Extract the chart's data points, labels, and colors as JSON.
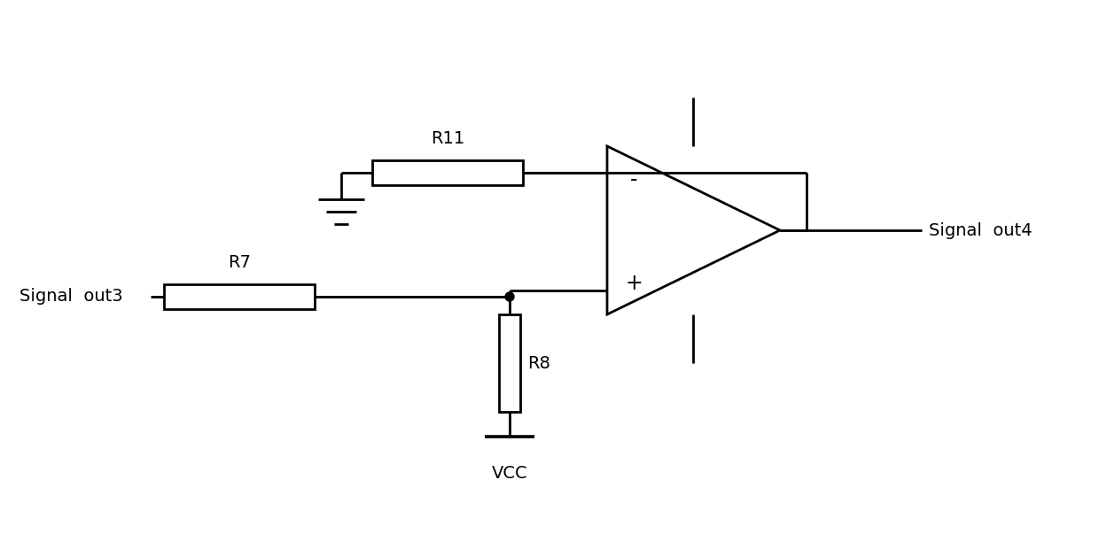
{
  "bg_color": "#ffffff",
  "line_color": "#000000",
  "lw": 2.0,
  "font_size": 14,
  "font_family": "DejaVu Sans",
  "labels": {
    "signal_out3": "Signal  out3",
    "signal_out4": "Signal  out4",
    "R7": "R7",
    "R8": "R8",
    "R11": "R11",
    "VCC": "VCC",
    "minus": "-",
    "plus": "+"
  }
}
